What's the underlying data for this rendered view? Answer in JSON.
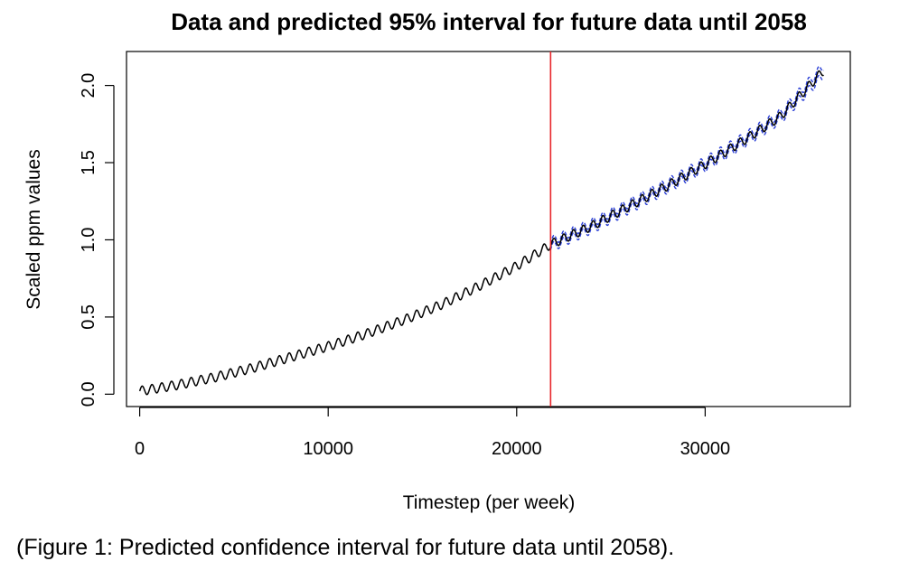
{
  "chart_data": {
    "type": "line",
    "title": "Data and predicted 95% interval for future data until 2058",
    "xlabel": "Timestep (per week)",
    "ylabel": "Scaled ppm values",
    "xlim": [
      -700,
      37700
    ],
    "ylim": [
      -0.08,
      2.22
    ],
    "x_ticks": [
      0,
      10000,
      20000,
      30000
    ],
    "x_tick_labels": [
      "0",
      "10000",
      "20000",
      "30000"
    ],
    "y_ticks": [
      0.0,
      0.5,
      1.0,
      1.5,
      2.0
    ],
    "y_tick_labels": [
      "0.0",
      "0.5",
      "1.0",
      "1.5",
      "2.0"
    ],
    "grid": false,
    "vline": {
      "x": 21800,
      "color": "#e8262b"
    },
    "series": [
      {
        "role": "observed",
        "color": "#000000",
        "x": [
          0,
          2000,
          4000,
          6000,
          8000,
          10000,
          12000,
          14000,
          16000,
          18000,
          20000,
          21800
        ],
        "y": [
          0.02,
          0.06,
          0.11,
          0.17,
          0.24,
          0.31,
          0.39,
          0.48,
          0.58,
          0.7,
          0.83,
          0.97
        ],
        "seasonal_amplitude": 0.03
      },
      {
        "role": "predicted",
        "color": "#000000",
        "x": [
          21800,
          24000,
          26000,
          28000,
          30000,
          32000,
          34000,
          36300
        ],
        "y": [
          0.97,
          1.09,
          1.22,
          1.35,
          1.49,
          1.64,
          1.8,
          2.1
        ],
        "seasonal_amplitude": 0.03
      },
      {
        "role": "interval",
        "color": "#2b3fd6",
        "x": [
          21800,
          24000,
          26000,
          28000,
          30000,
          32000,
          34000,
          36300
        ],
        "y_lower": [
          0.95,
          1.07,
          1.2,
          1.33,
          1.47,
          1.62,
          1.78,
          2.07
        ],
        "y_upper": [
          0.99,
          1.11,
          1.24,
          1.37,
          1.51,
          1.66,
          1.82,
          2.13
        ]
      }
    ]
  },
  "caption": "(Figure 1: Predicted confidence interval for future data until 2058)."
}
